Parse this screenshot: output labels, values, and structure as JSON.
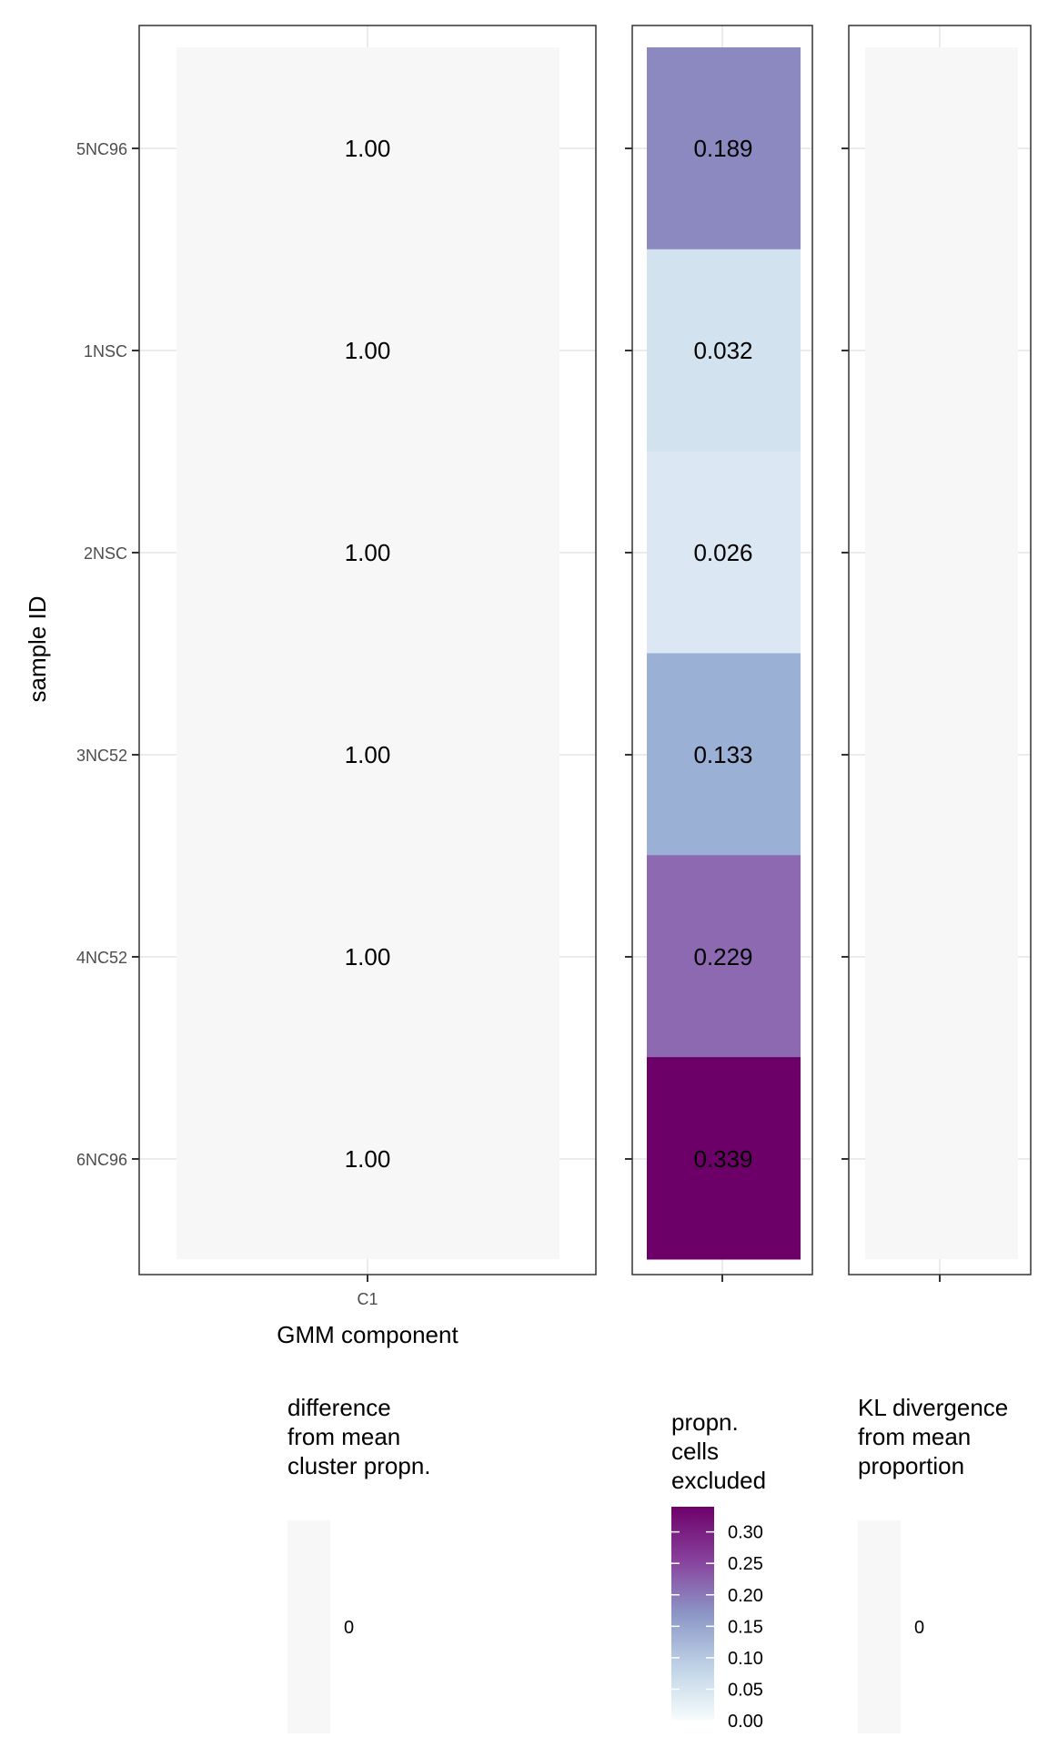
{
  "chart_data": [
    {
      "type": "heatmap",
      "panel": "cluster-proportion",
      "title": "",
      "xlabel": "GMM component",
      "ylabel": "sample ID",
      "x_categories": [
        "C1"
      ],
      "y_categories": [
        "5NC96",
        "1NSC",
        "2NSC",
        "3NC52",
        "4NC52",
        "6NC96"
      ],
      "values": [
        [
          1.0
        ],
        [
          1.0
        ],
        [
          1.0
        ],
        [
          1.0
        ],
        [
          1.0
        ],
        [
          1.0
        ]
      ],
      "cell_labels": [
        "1.00",
        "1.00",
        "1.00",
        "1.00",
        "1.00",
        "1.00"
      ],
      "fill_color": "#f7f7f7",
      "legend": {
        "title_lines": [
          "difference",
          "from mean",
          "cluster propn."
        ],
        "tick_labels": [
          "0"
        ],
        "colors": [
          "#f7f7f7"
        ]
      }
    },
    {
      "type": "heatmap",
      "panel": "cells-excluded",
      "y_categories": [
        "5NC96",
        "1NSC",
        "2NSC",
        "3NC52",
        "4NC52",
        "6NC96"
      ],
      "values": [
        0.189,
        0.032,
        0.026,
        0.133,
        0.229,
        0.339
      ],
      "cell_labels": [
        "0.189",
        "0.032",
        "0.026",
        "0.133",
        "0.229",
        "0.339"
      ],
      "colors": [
        "#8c89c0",
        "#d3e2ef",
        "#dbe7f2",
        "#9bb0d5",
        "#8c69b0",
        "#6d0068"
      ],
      "legend": {
        "title_lines": [
          "propn.",
          "cells",
          "excluded"
        ],
        "range": [
          0,
          0.34
        ],
        "ticks": [
          0.0,
          0.05,
          0.1,
          0.15,
          0.2,
          0.25,
          0.3
        ],
        "tick_labels": [
          "0.00",
          "0.05",
          "0.10",
          "0.15",
          "0.20",
          "0.25",
          "0.30"
        ],
        "gradient_colors": [
          "#f7fcfd",
          "#bfd3e6",
          "#8c96c6",
          "#88419d",
          "#6e016b"
        ]
      }
    },
    {
      "type": "heatmap",
      "panel": "kl-divergence",
      "y_categories": [
        "5NC96",
        "1NSC",
        "2NSC",
        "3NC52",
        "4NC52",
        "6NC96"
      ],
      "values": [
        0,
        0,
        0,
        0,
        0,
        0
      ],
      "fill_color": "#f7f7f7",
      "legend": {
        "title_lines": [
          "KL divergence",
          "from mean",
          "proportion"
        ],
        "tick_labels": [
          "0"
        ],
        "colors": [
          "#f7f7f7"
        ]
      }
    }
  ]
}
